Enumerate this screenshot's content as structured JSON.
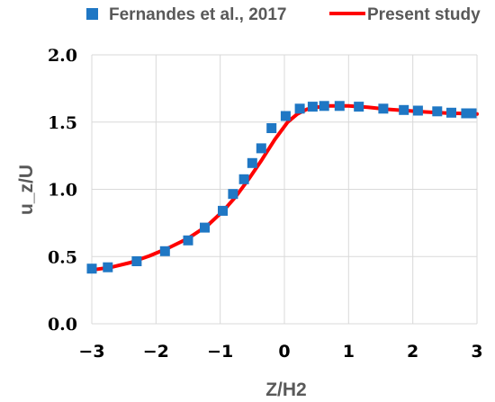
{
  "chart_data": {
    "type": "scatter",
    "xlabel": "Z/H2",
    "ylabel": "u_z/U",
    "xlim": [
      -3,
      3
    ],
    "ylim": [
      0,
      2
    ],
    "x_ticks": [
      "−3",
      "−2",
      "−1",
      "0",
      "1",
      "2",
      "3"
    ],
    "x_tick_values": [
      -3,
      -2,
      -1,
      0,
      1,
      2,
      3
    ],
    "y_ticks": [
      "0.0",
      "0.5",
      "1.0",
      "1.5",
      "2.0"
    ],
    "y_tick_values": [
      0,
      0.5,
      1.0,
      1.5,
      2.0
    ],
    "grid": true,
    "legend_position": "top",
    "series": [
      {
        "name": "Fernandes et al., 2017",
        "kind": "markers",
        "color": "#1f77c4",
        "x": [
          -3.0,
          -2.75,
          -2.3,
          -1.86,
          -1.5,
          -1.24,
          -0.96,
          -0.8,
          -0.63,
          -0.5,
          -0.36,
          -0.2,
          0.02,
          0.24,
          0.44,
          0.62,
          0.86,
          1.16,
          1.54,
          1.86,
          2.08,
          2.38,
          2.6,
          2.83,
          3.05
        ],
        "y": [
          0.41,
          0.42,
          0.465,
          0.54,
          0.62,
          0.715,
          0.84,
          0.965,
          1.075,
          1.195,
          1.305,
          1.455,
          1.545,
          1.6,
          1.615,
          1.62,
          1.62,
          1.615,
          1.6,
          1.59,
          1.585,
          1.58,
          1.57,
          1.565,
          1.565
        ]
      },
      {
        "name": "Present study",
        "kind": "line",
        "color": "#ff0000",
        "x": [
          -3.0,
          -2.7,
          -2.4,
          -2.1,
          -1.8,
          -1.5,
          -1.2,
          -0.95,
          -0.75,
          -0.55,
          -0.35,
          -0.15,
          0.05,
          0.2,
          0.35,
          0.5,
          0.7,
          1.0,
          1.3,
          1.6,
          1.9,
          2.2,
          2.5,
          2.8,
          3.05
        ],
        "y": [
          0.4,
          0.42,
          0.455,
          0.505,
          0.565,
          0.635,
          0.73,
          0.84,
          0.95,
          1.08,
          1.22,
          1.37,
          1.5,
          1.56,
          1.595,
          1.61,
          1.62,
          1.62,
          1.61,
          1.595,
          1.585,
          1.575,
          1.568,
          1.563,
          1.56
        ]
      }
    ]
  }
}
